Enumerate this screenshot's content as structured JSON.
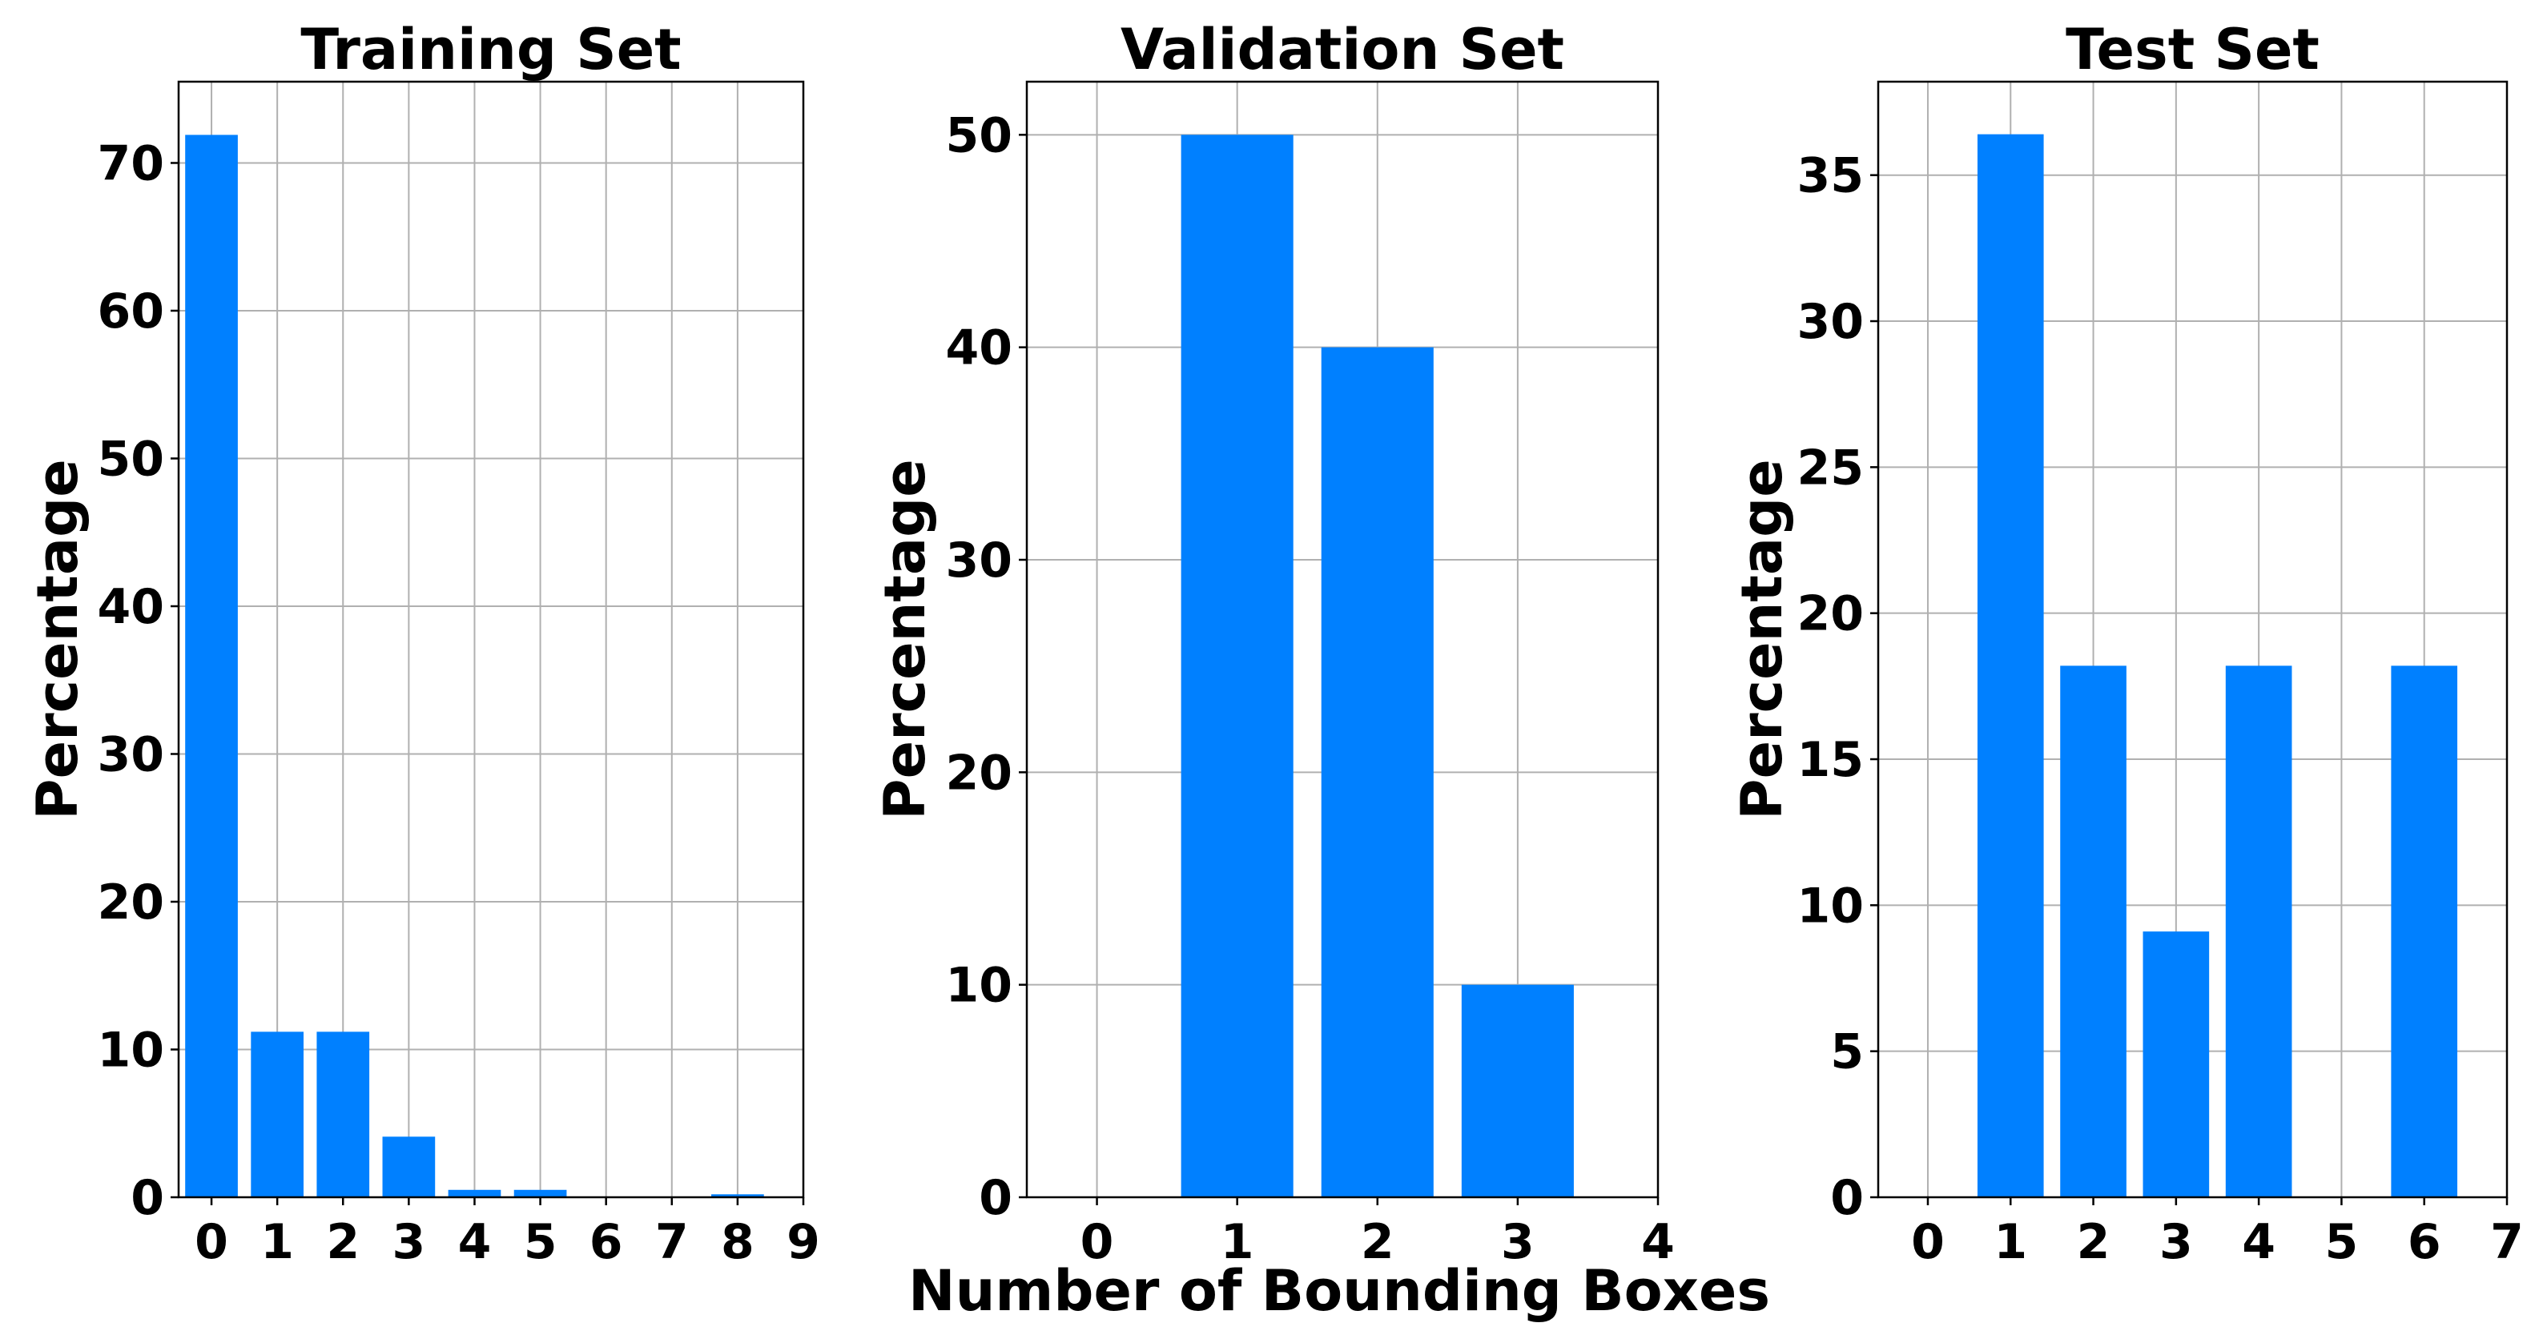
{
  "figure": {
    "xlabel": "Number of Bounding Boxes",
    "bar_color": "#0080ff",
    "grid": true
  },
  "chart_data": [
    {
      "type": "bar",
      "title": "Training Set",
      "ylabel": "Percentage",
      "xlabel": "",
      "categories": [
        "0",
        "1",
        "2",
        "3",
        "4",
        "5",
        "6",
        "7",
        "8"
      ],
      "values": [
        71.9,
        11.2,
        11.2,
        4.1,
        0.5,
        0.5,
        0,
        0,
        0.2
      ],
      "xlim": [
        -0.5,
        9
      ],
      "xticks": [
        0,
        1,
        2,
        3,
        4,
        5,
        6,
        7,
        8,
        9
      ],
      "ylim": [
        0,
        75.5
      ],
      "yticks": [
        0,
        10,
        20,
        30,
        40,
        50,
        60,
        70
      ]
    },
    {
      "type": "bar",
      "title": "Validation Set",
      "ylabel": "Percentage",
      "xlabel": "Number of Bounding Boxes",
      "categories": [
        "0",
        "1",
        "2",
        "3"
      ],
      "values": [
        0,
        50,
        40,
        10
      ],
      "xlim": [
        -0.5,
        4
      ],
      "xticks": [
        0,
        1,
        2,
        3,
        4
      ],
      "ylim": [
        0,
        52.5
      ],
      "yticks": [
        0,
        10,
        20,
        30,
        40,
        50
      ]
    },
    {
      "type": "bar",
      "title": "Test Set",
      "ylabel": "Percentage",
      "xlabel": "",
      "categories": [
        "0",
        "1",
        "2",
        "3",
        "4",
        "5",
        "6"
      ],
      "values": [
        0,
        36.4,
        18.2,
        9.1,
        18.2,
        0,
        18.2
      ],
      "xlim": [
        -0.6,
        7
      ],
      "xticks": [
        0,
        1,
        2,
        3,
        4,
        5,
        6,
        7
      ],
      "ylim": [
        0,
        38.2
      ],
      "yticks": [
        0,
        5,
        10,
        15,
        20,
        25,
        30,
        35
      ]
    }
  ]
}
